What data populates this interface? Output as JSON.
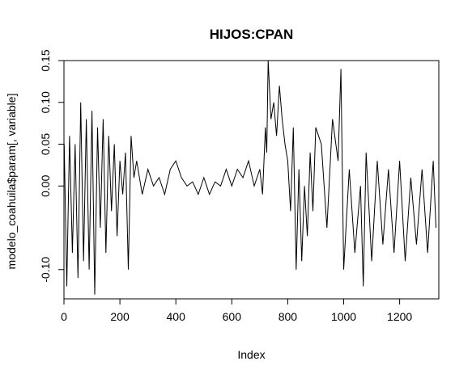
{
  "chart_data": {
    "type": "line",
    "title": "HIJOS:CPAN",
    "xlabel": "Index",
    "ylabel": "modelo_coahuila$param[, variable]",
    "xlim": [
      0,
      1340
    ],
    "ylim": [
      -0.135,
      0.15
    ],
    "x_ticks": [
      0,
      200,
      400,
      600,
      800,
      1000,
      1200
    ],
    "x_tick_labels": [
      "0",
      "200",
      "400",
      "600",
      "800",
      "1000",
      "1200"
    ],
    "y_ticks": [
      -0.1,
      0.0,
      0.05,
      0.1,
      0.15
    ],
    "y_tick_labels": [
      "-0.10",
      "0.00",
      "0.05",
      "0.10",
      "0.15"
    ],
    "grid": false,
    "legend": "none",
    "line_color": "#000000",
    "series": [
      {
        "x": [
          1,
          10,
          20,
          30,
          40,
          50,
          60,
          70,
          80,
          90,
          100,
          110,
          120,
          130,
          140,
          150,
          160,
          170,
          180,
          190,
          200,
          210,
          220,
          230,
          240,
          250,
          260,
          280,
          300,
          320,
          340,
          360,
          380,
          400,
          420,
          440,
          460,
          480,
          500,
          520,
          540,
          560,
          580,
          600,
          620,
          640,
          660,
          680,
          700,
          710,
          720,
          725,
          730,
          740,
          750,
          760,
          770,
          780,
          790,
          800,
          810,
          820,
          830,
          840,
          850,
          860,
          870,
          880,
          890,
          900,
          920,
          940,
          960,
          980,
          990,
          1000,
          1020,
          1040,
          1060,
          1070,
          1080,
          1100,
          1120,
          1140,
          1160,
          1180,
          1200,
          1220,
          1240,
          1260,
          1280,
          1300,
          1320,
          1330
        ],
        "y": [
          0.05,
          -0.12,
          0.06,
          -0.08,
          0.05,
          -0.11,
          0.1,
          -0.09,
          0.08,
          -0.1,
          0.09,
          -0.13,
          0.07,
          -0.05,
          0.08,
          -0.08,
          0.06,
          -0.03,
          0.05,
          -0.06,
          0.03,
          -0.01,
          0.04,
          -0.1,
          0.06,
          0.01,
          0.03,
          -0.01,
          0.02,
          0.0,
          0.01,
          -0.01,
          0.02,
          0.03,
          0.01,
          0.0,
          0.005,
          -0.01,
          0.01,
          -0.01,
          0.005,
          0.0,
          0.02,
          0.0,
          0.02,
          0.01,
          0.03,
          0.0,
          0.02,
          -0.01,
          0.07,
          0.04,
          0.15,
          0.08,
          0.1,
          0.06,
          0.12,
          0.08,
          0.05,
          0.03,
          -0.03,
          0.07,
          -0.1,
          0.02,
          -0.09,
          0.0,
          -0.06,
          0.04,
          -0.03,
          0.07,
          0.05,
          -0.05,
          0.08,
          0.03,
          0.14,
          -0.1,
          0.02,
          -0.08,
          0.0,
          -0.12,
          0.04,
          -0.09,
          0.03,
          -0.07,
          0.02,
          -0.08,
          0.03,
          -0.09,
          0.01,
          -0.07,
          0.02,
          -0.08,
          0.03,
          -0.05
        ]
      }
    ]
  }
}
